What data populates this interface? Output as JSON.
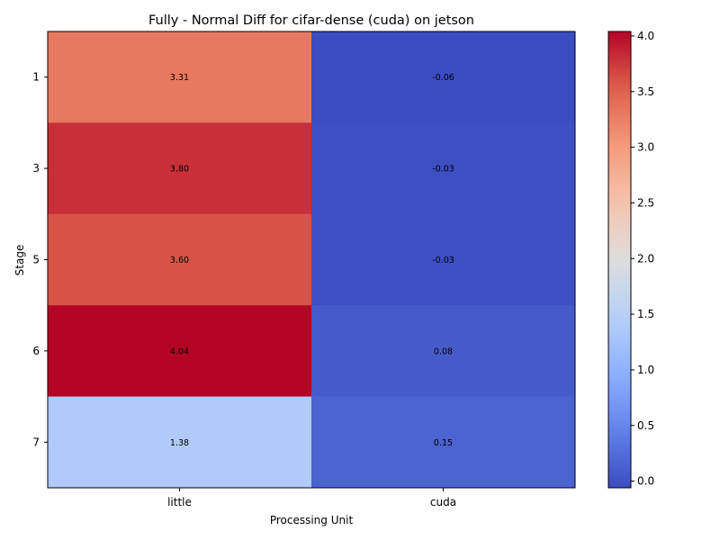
{
  "chart_data": {
    "type": "heatmap",
    "title": "Fully - Normal Diff for cifar-dense (cuda) on jetson",
    "xlabel": "Processing Unit",
    "ylabel": "Stage",
    "x_categories": [
      "little",
      "cuda"
    ],
    "y_categories": [
      "1",
      "3",
      "5",
      "6",
      "7"
    ],
    "values": [
      [
        3.31,
        -0.06
      ],
      [
        3.8,
        -0.03
      ],
      [
        3.6,
        -0.03
      ],
      [
        4.04,
        0.08
      ],
      [
        1.38,
        0.15
      ]
    ],
    "cell_labels": [
      [
        "3.31",
        "-0.06"
      ],
      [
        "3.80",
        "-0.03"
      ],
      [
        "3.60",
        "-0.03"
      ],
      [
        "4.04",
        "0.08"
      ],
      [
        "1.38",
        "0.15"
      ]
    ],
    "colormap": "coolwarm",
    "colorbar": {
      "range": [
        -0.06,
        4.04
      ],
      "ticks": [
        0.0,
        0.5,
        1.0,
        1.5,
        2.0,
        2.5,
        3.0,
        3.5,
        4.0
      ],
      "tick_labels": [
        "0.0",
        "0.5",
        "1.0",
        "1.5",
        "2.0",
        "2.5",
        "3.0",
        "3.5",
        "4.0"
      ]
    },
    "grid": false
  }
}
